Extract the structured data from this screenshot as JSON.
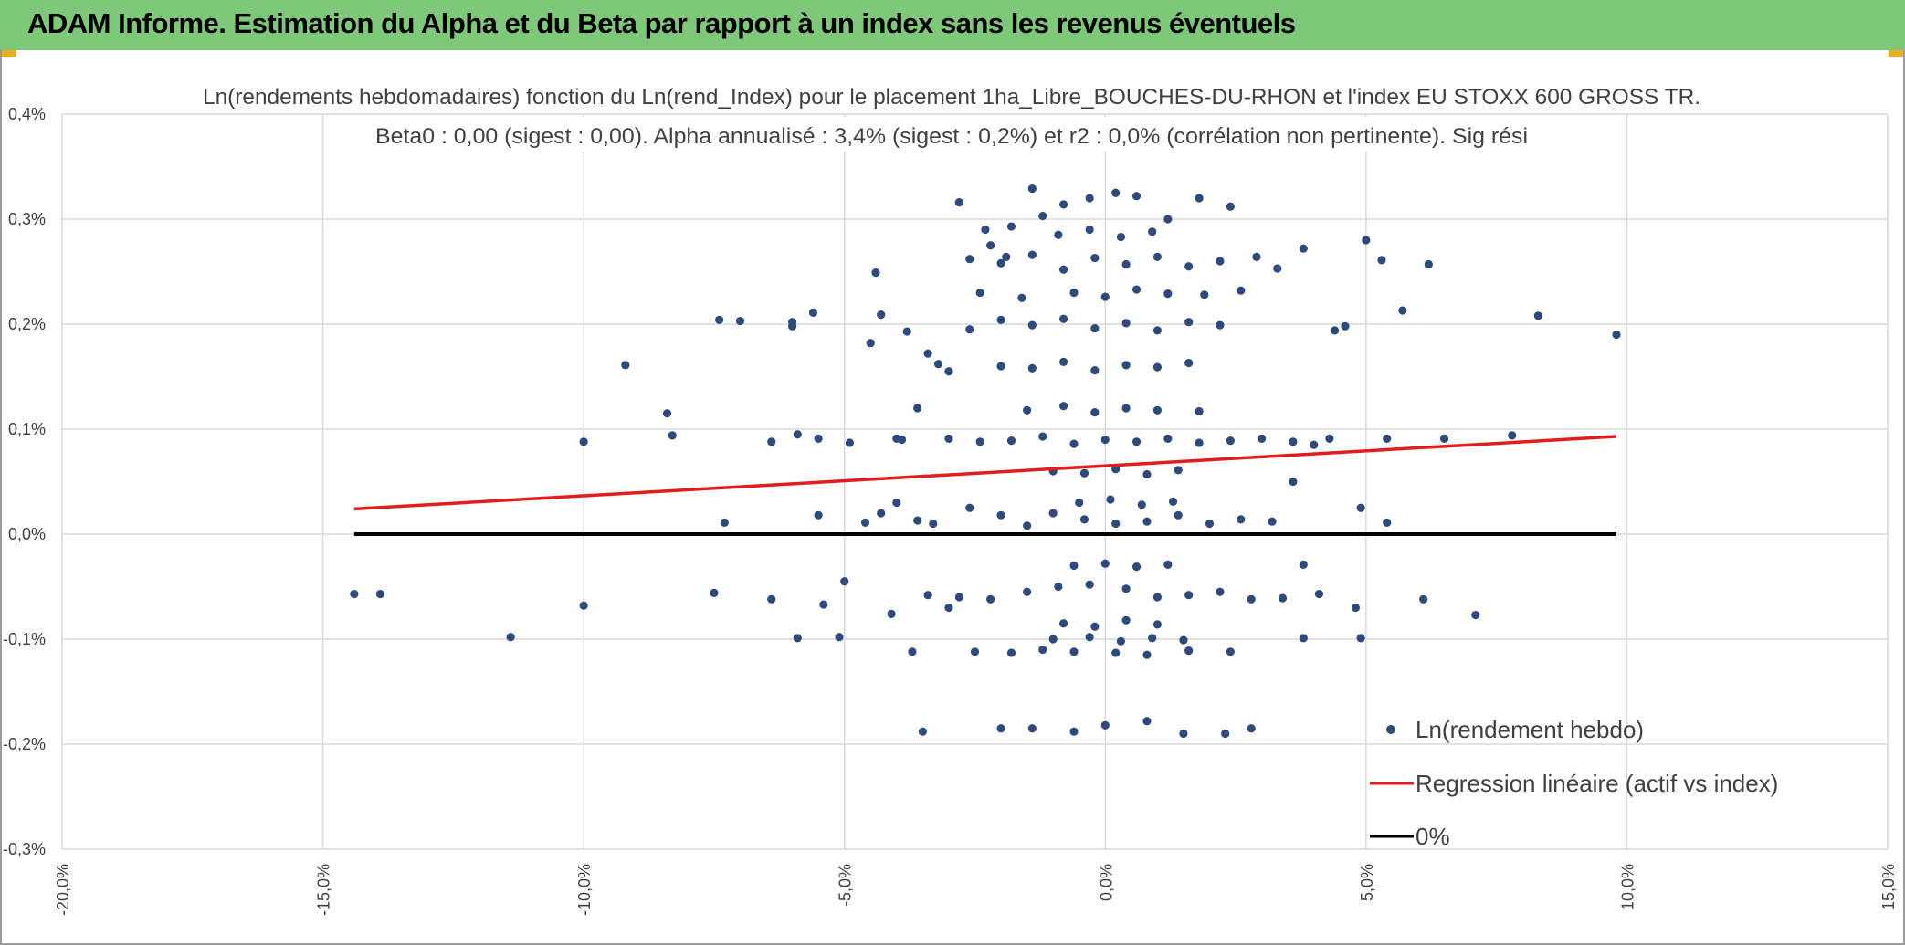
{
  "banner": {
    "title": "ADAM Informe. Estimation du Alpha et du Beta par rapport à un index sans les revenus éventuels"
  },
  "colors": {
    "banner": "#7ec87a",
    "points": "#2e4a7d",
    "regression": "#e11d1d",
    "zero_line": "#000000",
    "grid": "#d9d9d9"
  },
  "chart_data": {
    "type": "scatter",
    "title_lines": [
      "Ln(rendements hebdomadaires) fonction du Ln(rend_Index) pour le placement 1ha_Libre_BOUCHES-DU-RHON et l'index EU STOXX 600 GROSS TR.",
      "Beta0 : 0,00 (sigest : 0,00). Alpha annualisé : 3,4% (sigest : 0,2%) et r2 : 0,0% (corrélation non pertinente). Sig rési"
    ],
    "xlim": [
      -20,
      15
    ],
    "ylim": [
      -0.3,
      0.4
    ],
    "x_ticks": [
      "-20,0%",
      "-15,0%",
      "-10,0%",
      "-5,0%",
      "0,0%",
      "5,0%",
      "10,0%",
      "15,0%"
    ],
    "y_ticks": [
      "0,4%",
      "0,3%",
      "0,2%",
      "0,1%",
      "0,0%",
      "-0,1%",
      "-0,2%",
      "-0,3%"
    ],
    "grid": true,
    "legend_position": "bottom-right",
    "legend": [
      {
        "label": "Ln(rendement hebdo)",
        "kind": "marker",
        "color": "#2e4a7d"
      },
      {
        "label": "Regression linéaire (actif vs index)",
        "kind": "line",
        "color": "#e11d1d"
      },
      {
        "label": "0%",
        "kind": "line",
        "color": "#000000"
      }
    ],
    "series": [
      {
        "name": "Ln(rendement hebdo)",
        "points": [
          [
            -14.4,
            -0.057
          ],
          [
            -13.9,
            -0.057
          ],
          [
            -11.4,
            -0.098
          ],
          [
            -10.0,
            0.088
          ],
          [
            -10.0,
            -0.068
          ],
          [
            -9.2,
            0.161
          ],
          [
            -8.4,
            0.115
          ],
          [
            -8.3,
            0.094
          ],
          [
            -7.4,
            0.204
          ],
          [
            -7.0,
            0.203
          ],
          [
            -7.5,
            -0.056
          ],
          [
            -7.3,
            0.011
          ],
          [
            -6.4,
            0.088
          ],
          [
            -6.4,
            -0.062
          ],
          [
            -6.0,
            0.202
          ],
          [
            -6.0,
            0.198
          ],
          [
            -5.9,
            0.095
          ],
          [
            -5.9,
            -0.099
          ],
          [
            -5.6,
            0.211
          ],
          [
            -5.5,
            0.091
          ],
          [
            -5.4,
            -0.067
          ],
          [
            -5.5,
            0.018
          ],
          [
            -5.1,
            -0.098
          ],
          [
            -5.0,
            -0.045
          ],
          [
            -4.9,
            0.087
          ],
          [
            -4.5,
            0.182
          ],
          [
            -4.4,
            0.249
          ],
          [
            -4.3,
            0.209
          ],
          [
            -4.1,
            -0.076
          ],
          [
            -4.0,
            0.091
          ],
          [
            -4.0,
            0.03
          ],
          [
            -3.8,
            0.193
          ],
          [
            -3.6,
            0.12
          ],
          [
            -3.4,
            0.172
          ],
          [
            -3.2,
            0.162
          ],
          [
            -3.0,
            0.155
          ],
          [
            -2.8,
            0.316
          ],
          [
            -2.3,
            0.29
          ],
          [
            -2.2,
            0.275
          ],
          [
            -1.9,
            0.264
          ],
          [
            -1.8,
            0.293
          ],
          [
            -1.4,
            0.329
          ],
          [
            -1.2,
            0.303
          ],
          [
            -0.8,
            0.314
          ],
          [
            -0.3,
            0.32
          ],
          [
            0.2,
            0.325
          ],
          [
            0.6,
            0.322
          ],
          [
            1.2,
            0.3
          ],
          [
            1.8,
            0.32
          ],
          [
            2.4,
            0.312
          ],
          [
            2.9,
            0.264
          ],
          [
            3.3,
            0.253
          ],
          [
            3.8,
            0.272
          ],
          [
            4.4,
            0.194
          ],
          [
            4.6,
            0.198
          ],
          [
            5.0,
            0.28
          ],
          [
            5.3,
            0.261
          ],
          [
            5.7,
            0.213
          ],
          [
            6.2,
            0.257
          ],
          [
            6.5,
            0.091
          ],
          [
            7.8,
            0.094
          ],
          [
            8.3,
            0.208
          ],
          [
            9.8,
            0.19
          ],
          [
            5.4,
            0.091
          ],
          [
            4.9,
            0.025
          ],
          [
            5.4,
            0.011
          ],
          [
            4.8,
            -0.07
          ],
          [
            4.9,
            -0.099
          ],
          [
            6.1,
            -0.062
          ],
          [
            7.1,
            -0.077
          ],
          [
            4.1,
            -0.057
          ],
          [
            3.8,
            -0.099
          ],
          [
            3.4,
            -0.061
          ],
          [
            3.8,
            -0.029
          ],
          [
            4.3,
            0.091
          ],
          [
            4.0,
            0.085
          ],
          [
            3.6,
            0.05
          ],
          [
            2.8,
            -0.185
          ],
          [
            2.3,
            -0.19
          ],
          [
            1.5,
            -0.19
          ],
          [
            0.8,
            -0.178
          ],
          [
            0.0,
            -0.182
          ],
          [
            -0.6,
            -0.188
          ],
          [
            -1.4,
            -0.185
          ],
          [
            -2.0,
            -0.185
          ],
          [
            -3.5,
            -0.188
          ],
          [
            -3.7,
            -0.112
          ],
          [
            -3.0,
            -0.07
          ],
          [
            -2.5,
            -0.112
          ],
          [
            -1.8,
            -0.113
          ],
          [
            -1.2,
            -0.11
          ],
          [
            -0.6,
            -0.112
          ],
          [
            0.2,
            -0.113
          ],
          [
            0.8,
            -0.115
          ],
          [
            1.6,
            -0.111
          ],
          [
            2.4,
            -0.112
          ],
          [
            -4.3,
            0.02
          ],
          [
            -3.6,
            0.013
          ],
          [
            -3.3,
            0.01
          ],
          [
            -2.6,
            0.025
          ],
          [
            -2.0,
            0.018
          ],
          [
            -1.5,
            0.008
          ],
          [
            -1.0,
            0.02
          ],
          [
            -0.4,
            0.014
          ],
          [
            0.2,
            0.01
          ],
          [
            0.8,
            0.012
          ],
          [
            1.4,
            0.018
          ],
          [
            2.0,
            0.01
          ],
          [
            2.6,
            0.014
          ],
          [
            3.2,
            0.012
          ],
          [
            -3.4,
            -0.058
          ],
          [
            -2.8,
            -0.06
          ],
          [
            -2.2,
            -0.062
          ],
          [
            -1.5,
            -0.055
          ],
          [
            -0.9,
            -0.05
          ],
          [
            -0.3,
            -0.048
          ],
          [
            0.4,
            -0.052
          ],
          [
            1.0,
            -0.06
          ],
          [
            1.6,
            -0.058
          ],
          [
            2.2,
            -0.055
          ],
          [
            2.8,
            -0.062
          ],
          [
            -3.0,
            0.091
          ],
          [
            -2.4,
            0.088
          ],
          [
            -1.8,
            0.089
          ],
          [
            -1.2,
            0.093
          ],
          [
            -0.6,
            0.086
          ],
          [
            0.0,
            0.09
          ],
          [
            0.6,
            0.088
          ],
          [
            1.2,
            0.091
          ],
          [
            1.8,
            0.087
          ],
          [
            2.4,
            0.089
          ],
          [
            3.0,
            0.091
          ],
          [
            -2.6,
            0.195
          ],
          [
            -2.0,
            0.204
          ],
          [
            -1.4,
            0.199
          ],
          [
            -0.8,
            0.205
          ],
          [
            -0.2,
            0.196
          ],
          [
            0.4,
            0.201
          ],
          [
            1.0,
            0.194
          ],
          [
            1.6,
            0.202
          ],
          [
            2.2,
            0.199
          ],
          [
            -2.6,
            0.262
          ],
          [
            -2.0,
            0.258
          ],
          [
            -1.4,
            0.266
          ],
          [
            -0.8,
            0.252
          ],
          [
            -0.2,
            0.263
          ],
          [
            0.4,
            0.257
          ],
          [
            1.0,
            0.264
          ],
          [
            1.6,
            0.255
          ],
          [
            2.2,
            0.26
          ],
          [
            -2.0,
            0.16
          ],
          [
            -1.4,
            0.158
          ],
          [
            -0.8,
            0.164
          ],
          [
            -0.2,
            0.156
          ],
          [
            0.4,
            0.161
          ],
          [
            1.0,
            0.159
          ],
          [
            1.6,
            0.163
          ],
          [
            -1.5,
            0.118
          ],
          [
            -0.8,
            0.122
          ],
          [
            -0.2,
            0.116
          ],
          [
            0.4,
            0.12
          ],
          [
            1.0,
            0.118
          ],
          [
            1.8,
            0.117
          ],
          [
            -1.0,
            0.06
          ],
          [
            -0.4,
            0.058
          ],
          [
            0.2,
            0.062
          ],
          [
            0.8,
            0.057
          ],
          [
            1.4,
            0.061
          ],
          [
            -0.6,
            -0.03
          ],
          [
            0.0,
            -0.028
          ],
          [
            0.6,
            -0.031
          ],
          [
            1.2,
            -0.029
          ],
          [
            -0.8,
            -0.085
          ],
          [
            -0.2,
            -0.088
          ],
          [
            0.4,
            -0.082
          ],
          [
            1.0,
            -0.086
          ],
          [
            -0.5,
            0.03
          ],
          [
            0.1,
            0.033
          ],
          [
            0.7,
            0.028
          ],
          [
            1.3,
            0.031
          ],
          [
            -1.0,
            -0.1
          ],
          [
            -0.3,
            -0.098
          ],
          [
            0.3,
            -0.102
          ],
          [
            0.9,
            -0.099
          ],
          [
            1.5,
            -0.101
          ],
          [
            -0.6,
            0.23
          ],
          [
            0.0,
            0.226
          ],
          [
            0.6,
            0.233
          ],
          [
            1.2,
            0.229
          ],
          [
            -0.9,
            0.285
          ],
          [
            -0.3,
            0.29
          ],
          [
            0.3,
            0.283
          ],
          [
            0.9,
            0.288
          ],
          [
            -1.6,
            0.225
          ],
          [
            1.9,
            0.228
          ],
          [
            -2.4,
            0.23
          ],
          [
            2.6,
            0.232
          ],
          [
            -3.9,
            0.09
          ],
          [
            3.6,
            0.088
          ],
          [
            -4.6,
            0.011
          ]
        ]
      },
      {
        "name": "Regression linéaire (actif vs index)",
        "points": [
          [
            -14.4,
            0.024
          ],
          [
            9.8,
            0.093
          ]
        ]
      },
      {
        "name": "0%",
        "points": [
          [
            -14.4,
            0.0
          ],
          [
            9.8,
            0.0
          ]
        ]
      }
    ]
  }
}
